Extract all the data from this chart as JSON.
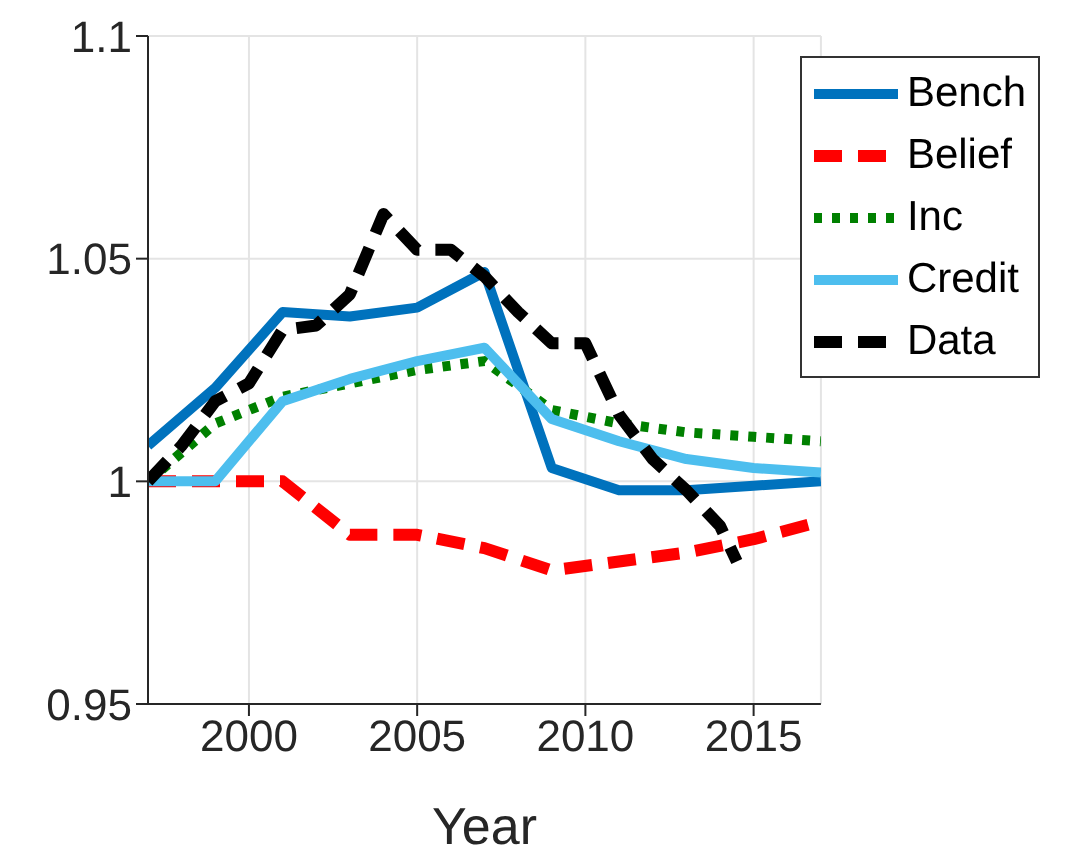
{
  "chart_data": {
    "type": "line",
    "xlabel": "Year",
    "x": [
      1997,
      1999,
      2001,
      2003,
      2005,
      2007,
      2009,
      2011,
      2013,
      2015,
      2017
    ],
    "series": [
      {
        "name": "Bench",
        "color": "#0072bd",
        "line_style": "solid",
        "values": [
          1.008,
          1.021,
          1.038,
          1.037,
          1.039,
          1.047,
          1.003,
          0.998,
          0.998,
          0.999,
          1.0
        ]
      },
      {
        "name": "Belief",
        "color": "#ff0000",
        "line_style": "dashed",
        "values": [
          1.0,
          1.0,
          1.0,
          0.988,
          0.988,
          0.985,
          0.98,
          0.982,
          0.984,
          0.987,
          0.991
        ]
      },
      {
        "name": "Inc",
        "color": "#008000",
        "line_style": "dotted",
        "values": [
          1.0,
          1.013,
          1.019,
          1.022,
          1.025,
          1.027,
          1.016,
          1.013,
          1.011,
          1.01,
          1.009
        ]
      },
      {
        "name": "Credit",
        "color": "#4dbeee",
        "line_style": "solid",
        "values": [
          1.0,
          1.0,
          1.018,
          1.023,
          1.027,
          1.03,
          1.014,
          1.009,
          1.005,
          1.003,
          1.002
        ]
      },
      {
        "name": "Data",
        "color": "#000000",
        "line_style": "dashed",
        "x": [
          1997,
          1998,
          1999,
          2000,
          2001,
          2002,
          2003,
          2004,
          2005,
          2006,
          2007,
          2008,
          2009,
          2010,
          2011,
          2012,
          2013,
          2014,
          2014.5
        ],
        "values": [
          1.0,
          1.008,
          1.018,
          1.022,
          1.034,
          1.035,
          1.042,
          1.06,
          1.052,
          1.052,
          1.046,
          1.038,
          1.031,
          1.031,
          1.015,
          1.005,
          0.998,
          0.99,
          0.982
        ]
      }
    ],
    "xlim": [
      1997,
      2017
    ],
    "xticks": [
      2000,
      2005,
      2010,
      2015
    ],
    "ylim": [
      0.95,
      1.1
    ],
    "yticks": [
      0.95,
      1,
      1.05,
      1.1
    ],
    "grid": true,
    "legend": "top right",
    "marker": "none"
  }
}
